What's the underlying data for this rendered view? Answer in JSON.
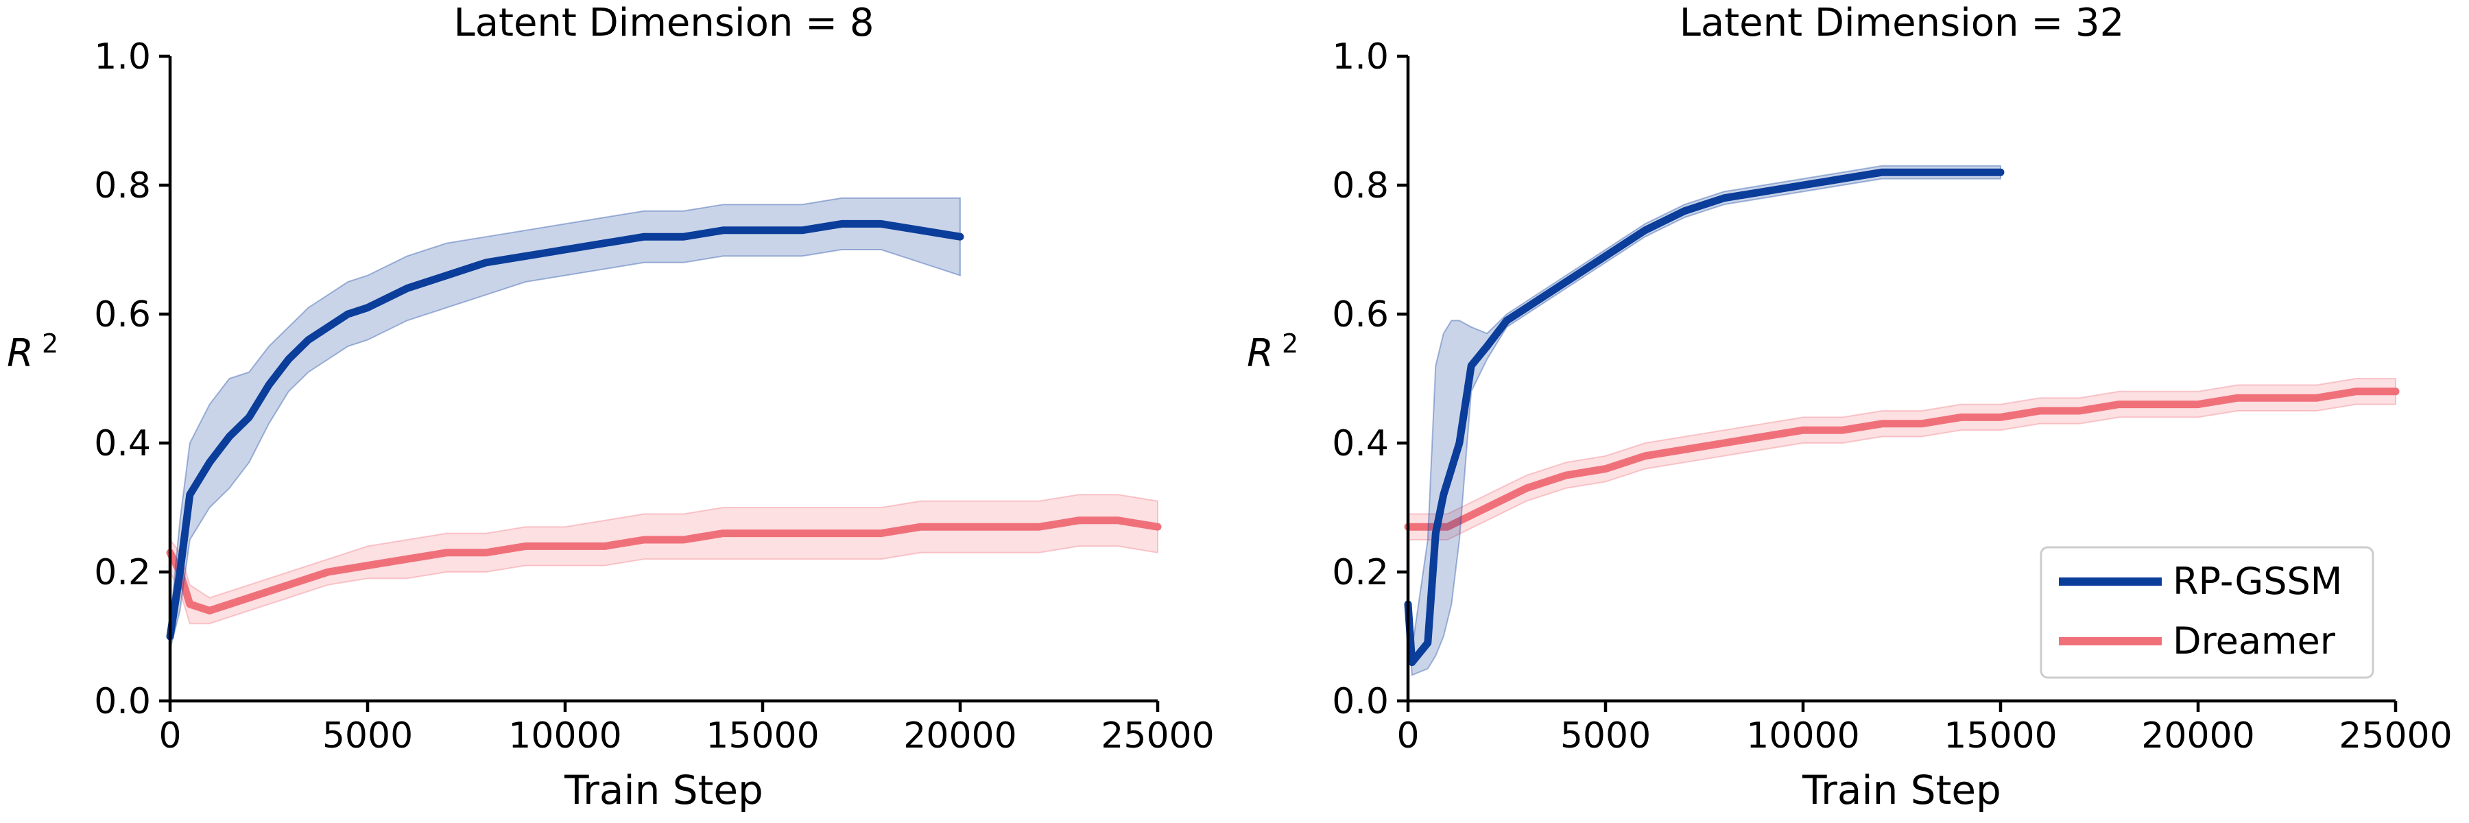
{
  "colors": {
    "rp_gssm": "#0b3d9a",
    "dreamer": "#f0707a"
  },
  "legend": {
    "items": [
      "RP-GSSM",
      "Dreamer"
    ],
    "location": "lower right of right panel"
  },
  "chart_data": [
    {
      "type": "line",
      "title": "Latent Dimension = 8",
      "xlabel": "Train Step",
      "ylabel": "R 2",
      "xlim": [
        0,
        25000
      ],
      "ylim": [
        0.0,
        1.0
      ],
      "xticks": [
        "0",
        "5000",
        "10000",
        "15000",
        "20000",
        "25000"
      ],
      "yticks": [
        "0.0",
        "0.2",
        "0.4",
        "0.6",
        "0.8",
        "1.0"
      ],
      "series": [
        {
          "name": "RP-GSSM",
          "x": [
            0,
            250,
            500,
            1000,
            1500,
            2000,
            2500,
            3000,
            3500,
            4000,
            4500,
            5000,
            6000,
            7000,
            8000,
            9000,
            10000,
            11000,
            12000,
            13000,
            14000,
            15000,
            16000,
            17000,
            18000,
            19000,
            20000
          ],
          "y": [
            0.1,
            0.2,
            0.32,
            0.37,
            0.41,
            0.44,
            0.49,
            0.53,
            0.56,
            0.58,
            0.6,
            0.61,
            0.64,
            0.66,
            0.68,
            0.69,
            0.7,
            0.71,
            0.72,
            0.72,
            0.73,
            0.73,
            0.73,
            0.74,
            0.74,
            0.73,
            0.72
          ],
          "upper": [
            0.12,
            0.28,
            0.4,
            0.46,
            0.5,
            0.51,
            0.55,
            0.58,
            0.61,
            0.63,
            0.65,
            0.66,
            0.69,
            0.71,
            0.72,
            0.73,
            0.74,
            0.75,
            0.76,
            0.76,
            0.77,
            0.77,
            0.77,
            0.78,
            0.78,
            0.78,
            0.78
          ],
          "lower": [
            0.08,
            0.14,
            0.25,
            0.3,
            0.33,
            0.37,
            0.43,
            0.48,
            0.51,
            0.53,
            0.55,
            0.56,
            0.59,
            0.61,
            0.63,
            0.65,
            0.66,
            0.67,
            0.68,
            0.68,
            0.69,
            0.69,
            0.69,
            0.7,
            0.7,
            0.68,
            0.66
          ]
        },
        {
          "name": "Dreamer",
          "x": [
            0,
            250,
            500,
            1000,
            1500,
            2000,
            3000,
            4000,
            5000,
            6000,
            7000,
            8000,
            9000,
            10000,
            11000,
            12000,
            13000,
            14000,
            15000,
            16000,
            17000,
            18000,
            19000,
            20000,
            21000,
            22000,
            23000,
            24000,
            25000
          ],
          "y": [
            0.23,
            0.2,
            0.15,
            0.14,
            0.15,
            0.16,
            0.18,
            0.2,
            0.21,
            0.22,
            0.23,
            0.23,
            0.24,
            0.24,
            0.24,
            0.25,
            0.25,
            0.26,
            0.26,
            0.26,
            0.26,
            0.26,
            0.27,
            0.27,
            0.27,
            0.27,
            0.28,
            0.28,
            0.27
          ],
          "upper": [
            0.25,
            0.23,
            0.18,
            0.16,
            0.17,
            0.18,
            0.2,
            0.22,
            0.24,
            0.25,
            0.26,
            0.26,
            0.27,
            0.27,
            0.28,
            0.29,
            0.29,
            0.3,
            0.3,
            0.3,
            0.3,
            0.3,
            0.31,
            0.31,
            0.31,
            0.31,
            0.32,
            0.32,
            0.31
          ],
          "lower": [
            0.2,
            0.17,
            0.12,
            0.12,
            0.13,
            0.14,
            0.16,
            0.18,
            0.19,
            0.19,
            0.2,
            0.2,
            0.21,
            0.21,
            0.21,
            0.22,
            0.22,
            0.22,
            0.22,
            0.22,
            0.22,
            0.22,
            0.23,
            0.23,
            0.23,
            0.23,
            0.24,
            0.24,
            0.23
          ]
        }
      ]
    },
    {
      "type": "line",
      "title": "Latent Dimension = 32",
      "xlabel": "Train Step",
      "ylabel": "R 2",
      "xlim": [
        0,
        25000
      ],
      "ylim": [
        0.0,
        1.0
      ],
      "xticks": [
        "0",
        "5000",
        "10000",
        "15000",
        "20000",
        "25000"
      ],
      "yticks": [
        "0.0",
        "0.2",
        "0.4",
        "0.6",
        "0.8",
        "1.0"
      ],
      "series": [
        {
          "name": "RP-GSSM",
          "x": [
            0,
            100,
            500,
            700,
            900,
            1100,
            1300,
            1600,
            2000,
            2500,
            3000,
            4000,
            5000,
            6000,
            7000,
            8000,
            9000,
            10000,
            11000,
            12000,
            13000,
            14000,
            15000
          ],
          "y": [
            0.15,
            0.06,
            0.09,
            0.26,
            0.32,
            0.36,
            0.4,
            0.52,
            0.55,
            0.59,
            0.61,
            0.65,
            0.69,
            0.73,
            0.76,
            0.78,
            0.79,
            0.8,
            0.81,
            0.82,
            0.82,
            0.82,
            0.82
          ],
          "upper": [
            0.17,
            0.08,
            0.25,
            0.52,
            0.57,
            0.59,
            0.59,
            0.58,
            0.57,
            0.6,
            0.62,
            0.66,
            0.7,
            0.74,
            0.77,
            0.79,
            0.8,
            0.81,
            0.82,
            0.83,
            0.83,
            0.83,
            0.83
          ],
          "lower": [
            0.13,
            0.04,
            0.05,
            0.07,
            0.1,
            0.15,
            0.25,
            0.48,
            0.53,
            0.58,
            0.6,
            0.64,
            0.68,
            0.72,
            0.75,
            0.77,
            0.78,
            0.79,
            0.8,
            0.81,
            0.81,
            0.81,
            0.81
          ]
        },
        {
          "name": "Dreamer",
          "x": [
            0,
            500,
            1000,
            2000,
            3000,
            4000,
            5000,
            6000,
            7000,
            8000,
            9000,
            10000,
            11000,
            12000,
            13000,
            14000,
            15000,
            16000,
            17000,
            18000,
            19000,
            20000,
            21000,
            22000,
            23000,
            24000,
            25000
          ],
          "y": [
            0.27,
            0.27,
            0.27,
            0.3,
            0.33,
            0.35,
            0.36,
            0.38,
            0.39,
            0.4,
            0.41,
            0.42,
            0.42,
            0.43,
            0.43,
            0.44,
            0.44,
            0.45,
            0.45,
            0.46,
            0.46,
            0.46,
            0.47,
            0.47,
            0.47,
            0.48,
            0.48
          ],
          "upper": [
            0.29,
            0.29,
            0.29,
            0.32,
            0.35,
            0.37,
            0.38,
            0.4,
            0.41,
            0.42,
            0.43,
            0.44,
            0.44,
            0.45,
            0.45,
            0.46,
            0.46,
            0.47,
            0.47,
            0.48,
            0.48,
            0.48,
            0.49,
            0.49,
            0.49,
            0.5,
            0.5
          ],
          "lower": [
            0.25,
            0.25,
            0.25,
            0.28,
            0.31,
            0.33,
            0.34,
            0.36,
            0.37,
            0.38,
            0.39,
            0.4,
            0.4,
            0.41,
            0.41,
            0.42,
            0.42,
            0.43,
            0.43,
            0.44,
            0.44,
            0.44,
            0.45,
            0.45,
            0.45,
            0.46,
            0.46
          ]
        }
      ]
    }
  ]
}
